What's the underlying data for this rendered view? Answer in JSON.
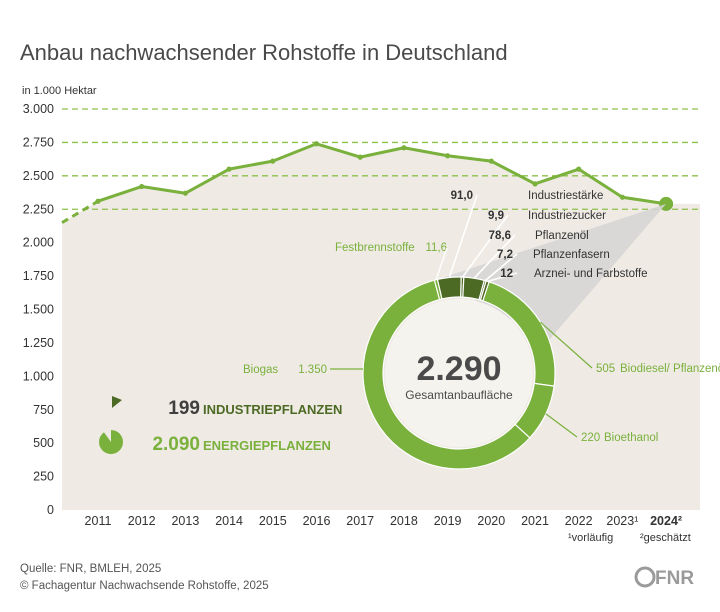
{
  "title": "Anbau nachwachsender Rohstoffe in Deutschland",
  "unit": "in 1.000 Hektar",
  "colors": {
    "line": "#7ab03c",
    "area": "#efebe4",
    "grid": "#8cc14a",
    "ring_light": "#7ab03c",
    "ring_dark": "#4d6a24",
    "funnel": "#d5d5d5"
  },
  "chart_data": [
    {
      "type": "area",
      "x": [
        "2010",
        "2011",
        "2012",
        "2013",
        "2014",
        "2015",
        "2016",
        "2017",
        "2018",
        "2019",
        "2020",
        "2021",
        "2022",
        "2023",
        "2024"
      ],
      "x_tick_labels": [
        "2011",
        "2012",
        "2013",
        "2014",
        "2015",
        "2016",
        "2017",
        "2018",
        "2019",
        "2020",
        "2021",
        "2022",
        "2023¹",
        "2024²"
      ],
      "values": [
        2150,
        2310,
        2420,
        2370,
        2550,
        2610,
        2740,
        2640,
        2710,
        2650,
        2610,
        2440,
        2550,
        2340,
        2290
      ],
      "ylim": [
        0,
        3000
      ],
      "yticks": [
        0,
        250,
        500,
        750,
        1000,
        1250,
        1500,
        1750,
        2000,
        2250,
        2500,
        2750,
        3000
      ],
      "ytick_labels": [
        "0",
        "250",
        "500",
        "750",
        "1.000",
        "1.250",
        "1.500",
        "1.750",
        "2.000",
        "2.250",
        "2.500",
        "2.750",
        "3.000"
      ],
      "dashed_gridlines": [
        2250,
        2500,
        2750,
        3000
      ],
      "footnotes": [
        "¹vorläufig",
        "²geschätzt"
      ]
    },
    {
      "type": "pie",
      "total": "2.290",
      "total_label": "Gesamtanbaufläche",
      "slices": [
        {
          "label": "Industriestärke",
          "value": 91.0,
          "value_text": "91,0",
          "group": "industrie"
        },
        {
          "label": "Industriezucker",
          "value": 9.9,
          "value_text": "9,9",
          "group": "industrie"
        },
        {
          "label": "Pflanzenöl",
          "value": 78.6,
          "value_text": "78,6",
          "group": "industrie"
        },
        {
          "label": "Pflanzenfasern",
          "value": 7.2,
          "value_text": "7,2",
          "group": "industrie"
        },
        {
          "label": "Arznei- und Farbstoffe",
          "value": 12,
          "value_text": "12",
          "group": "industrie"
        },
        {
          "label": "Biodiesel/ Pflanzenöl",
          "value": 505,
          "value_text": "505",
          "group": "energie"
        },
        {
          "label": "Bioethanol",
          "value": 220,
          "value_text": "220",
          "group": "energie"
        },
        {
          "label": "Biogas",
          "value": 1350,
          "value_text": "1.350",
          "group": "energie"
        },
        {
          "label": "Festbrennstoffe",
          "value": 11.6,
          "value_text": "11,6",
          "group": "energie"
        }
      ],
      "legend": [
        {
          "value": "199",
          "label": "INDUSTRIEPFLANZEN",
          "color": "#4d6a24"
        },
        {
          "value": "2.090",
          "label": "ENERGIEPFLANZEN",
          "color": "#7ab03c"
        }
      ]
    }
  ],
  "source": "Quelle: FNR, BMLEH, 2025",
  "copyright": "© Fachagentur Nachwachsende Rohstoffe, 2025",
  "logo_text": "FNR"
}
